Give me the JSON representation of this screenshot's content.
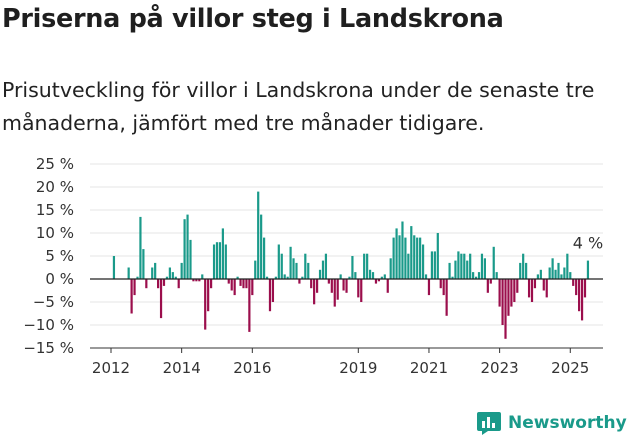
{
  "title": "Priserna på villor steg i Landskrona",
  "subtitle": "Prisutveckling för villor i Landskrona under de senaste tre månaderna, jämfört med tre månader tidigare.",
  "brand": {
    "name": "Newsworthy",
    "icon": "newsworthy-logo-icon",
    "color": "#1a9a8a"
  },
  "colors": {
    "positive": "#1a9a8a",
    "negative": "#9b0e4c",
    "zero_line": "#222222",
    "grid": "#e6e6e6"
  },
  "annotation": {
    "text": "4 %"
  },
  "chart_data": {
    "type": "bar",
    "title": "Priserna på villor steg i Landskrona",
    "xlabel": "",
    "ylabel": "",
    "ylim": [
      -15,
      25
    ],
    "yticks": [
      25,
      20,
      15,
      10,
      5,
      0,
      -5,
      -10,
      -15
    ],
    "ytick_labels": [
      "25 %",
      "20 %",
      "15 %",
      "10 %",
      "5 %",
      "0 %",
      "−5 %",
      "−10 %",
      "−15 %"
    ],
    "x_start": "2012-01",
    "x_end": "2025-06",
    "xticks": [
      {
        "date": "2012-01",
        "label": "2012"
      },
      {
        "date": "2014-01",
        "label": "2014"
      },
      {
        "date": "2016-01",
        "label": "2016"
      },
      {
        "date": "2019-01",
        "label": "2019"
      },
      {
        "date": "2021-01",
        "label": "2021"
      },
      {
        "date": "2023-01",
        "label": "2023"
      },
      {
        "date": "2025-01",
        "label": "2025"
      }
    ],
    "grid": true,
    "legend": "none",
    "points": [
      {
        "date": "2012-02",
        "value": 5
      },
      {
        "date": "2012-07",
        "value": 2.5
      },
      {
        "date": "2012-08",
        "value": -7.5
      },
      {
        "date": "2012-09",
        "value": -3.5
      },
      {
        "date": "2012-10",
        "value": 0.5
      },
      {
        "date": "2012-11",
        "value": 13.5
      },
      {
        "date": "2012-12",
        "value": 6.5
      },
      {
        "date": "2013-01",
        "value": -2
      },
      {
        "date": "2013-03",
        "value": 2.5
      },
      {
        "date": "2013-04",
        "value": 3.5
      },
      {
        "date": "2013-05",
        "value": -2
      },
      {
        "date": "2013-06",
        "value": -8.5
      },
      {
        "date": "2013-07",
        "value": -1.5
      },
      {
        "date": "2013-08",
        "value": 0.5
      },
      {
        "date": "2013-09",
        "value": 2.5
      },
      {
        "date": "2013-10",
        "value": 1.5
      },
      {
        "date": "2013-11",
        "value": 0.5
      },
      {
        "date": "2013-12",
        "value": -2
      },
      {
        "date": "2014-01",
        "value": 3.5
      },
      {
        "date": "2014-02",
        "value": 13
      },
      {
        "date": "2014-03",
        "value": 14
      },
      {
        "date": "2014-04",
        "value": 8.5
      },
      {
        "date": "2014-05",
        "value": -0.5
      },
      {
        "date": "2014-06",
        "value": -0.5
      },
      {
        "date": "2014-07",
        "value": -0.5
      },
      {
        "date": "2014-08",
        "value": 1
      },
      {
        "date": "2014-09",
        "value": -11
      },
      {
        "date": "2014-10",
        "value": -7
      },
      {
        "date": "2014-11",
        "value": -2
      },
      {
        "date": "2014-12",
        "value": 7.5
      },
      {
        "date": "2015-01",
        "value": 8
      },
      {
        "date": "2015-02",
        "value": 8
      },
      {
        "date": "2015-03",
        "value": 11
      },
      {
        "date": "2015-04",
        "value": 7.5
      },
      {
        "date": "2015-05",
        "value": -1
      },
      {
        "date": "2015-06",
        "value": -2.5
      },
      {
        "date": "2015-07",
        "value": -3.5
      },
      {
        "date": "2015-08",
        "value": 0.5
      },
      {
        "date": "2015-09",
        "value": -1.5
      },
      {
        "date": "2015-10",
        "value": -2
      },
      {
        "date": "2015-11",
        "value": -2
      },
      {
        "date": "2015-12",
        "value": -11.5
      },
      {
        "date": "2016-01",
        "value": -3.5
      },
      {
        "date": "2016-02",
        "value": 4
      },
      {
        "date": "2016-03",
        "value": 19
      },
      {
        "date": "2016-04",
        "value": 14
      },
      {
        "date": "2016-05",
        "value": 9
      },
      {
        "date": "2016-06",
        "value": 0.5
      },
      {
        "date": "2016-07",
        "value": -7
      },
      {
        "date": "2016-08",
        "value": -5
      },
      {
        "date": "2016-09",
        "value": 0.5
      },
      {
        "date": "2016-10",
        "value": 7.5
      },
      {
        "date": "2016-11",
        "value": 5.5
      },
      {
        "date": "2016-12",
        "value": 1
      },
      {
        "date": "2017-01",
        "value": 0.5
      },
      {
        "date": "2017-02",
        "value": 7
      },
      {
        "date": "2017-03",
        "value": 4.5
      },
      {
        "date": "2017-04",
        "value": 3.5
      },
      {
        "date": "2017-05",
        "value": -1
      },
      {
        "date": "2017-06",
        "value": 0.5
      },
      {
        "date": "2017-07",
        "value": 5.5
      },
      {
        "date": "2017-08",
        "value": 3.5
      },
      {
        "date": "2017-09",
        "value": -2
      },
      {
        "date": "2017-10",
        "value": -5.5
      },
      {
        "date": "2017-11",
        "value": -3
      },
      {
        "date": "2017-12",
        "value": 2
      },
      {
        "date": "2018-01",
        "value": 4
      },
      {
        "date": "2018-02",
        "value": 5.5
      },
      {
        "date": "2018-03",
        "value": -1
      },
      {
        "date": "2018-04",
        "value": -3
      },
      {
        "date": "2018-05",
        "value": -6
      },
      {
        "date": "2018-06",
        "value": -4.5
      },
      {
        "date": "2018-07",
        "value": 1
      },
      {
        "date": "2018-08",
        "value": -2.5
      },
      {
        "date": "2018-09",
        "value": -3
      },
      {
        "date": "2018-10",
        "value": 0.5
      },
      {
        "date": "2018-11",
        "value": 5
      },
      {
        "date": "2018-12",
        "value": 1.5
      },
      {
        "date": "2019-01",
        "value": -4
      },
      {
        "date": "2019-02",
        "value": -5
      },
      {
        "date": "2019-03",
        "value": 5.5
      },
      {
        "date": "2019-04",
        "value": 5.5
      },
      {
        "date": "2019-05",
        "value": 2
      },
      {
        "date": "2019-06",
        "value": 1.5
      },
      {
        "date": "2019-07",
        "value": -1
      },
      {
        "date": "2019-08",
        "value": -0.5
      },
      {
        "date": "2019-09",
        "value": 0.5
      },
      {
        "date": "2019-10",
        "value": 1
      },
      {
        "date": "2019-11",
        "value": -3
      },
      {
        "date": "2019-12",
        "value": 4.5
      },
      {
        "date": "2020-01",
        "value": 9
      },
      {
        "date": "2020-02",
        "value": 11
      },
      {
        "date": "2020-03",
        "value": 9.5
      },
      {
        "date": "2020-04",
        "value": 12.5
      },
      {
        "date": "2020-05",
        "value": 9
      },
      {
        "date": "2020-06",
        "value": 5.5
      },
      {
        "date": "2020-07",
        "value": 11.5
      },
      {
        "date": "2020-08",
        "value": 9.5
      },
      {
        "date": "2020-09",
        "value": 9
      },
      {
        "date": "2020-10",
        "value": 9
      },
      {
        "date": "2020-11",
        "value": 7.5
      },
      {
        "date": "2020-12",
        "value": 1
      },
      {
        "date": "2021-01",
        "value": -3.5
      },
      {
        "date": "2021-02",
        "value": 6
      },
      {
        "date": "2021-03",
        "value": 6
      },
      {
        "date": "2021-04",
        "value": 10
      },
      {
        "date": "2021-05",
        "value": -2
      },
      {
        "date": "2021-06",
        "value": -3.5
      },
      {
        "date": "2021-07",
        "value": -8
      },
      {
        "date": "2021-08",
        "value": 3.5
      },
      {
        "date": "2021-09",
        "value": 0.5
      },
      {
        "date": "2021-10",
        "value": 4
      },
      {
        "date": "2021-11",
        "value": 6
      },
      {
        "date": "2021-12",
        "value": 5.5
      },
      {
        "date": "2022-01",
        "value": 5.5
      },
      {
        "date": "2022-02",
        "value": 4
      },
      {
        "date": "2022-03",
        "value": 5.5
      },
      {
        "date": "2022-04",
        "value": 1.5
      },
      {
        "date": "2022-05",
        "value": 0.5
      },
      {
        "date": "2022-06",
        "value": 1.5
      },
      {
        "date": "2022-07",
        "value": 5.5
      },
      {
        "date": "2022-08",
        "value": 4.5
      },
      {
        "date": "2022-09",
        "value": -3
      },
      {
        "date": "2022-10",
        "value": -1
      },
      {
        "date": "2022-11",
        "value": 7
      },
      {
        "date": "2022-12",
        "value": 1.5
      },
      {
        "date": "2023-01",
        "value": -6
      },
      {
        "date": "2023-02",
        "value": -10
      },
      {
        "date": "2023-03",
        "value": -13
      },
      {
        "date": "2023-04",
        "value": -8
      },
      {
        "date": "2023-05",
        "value": -6
      },
      {
        "date": "2023-06",
        "value": -5
      },
      {
        "date": "2023-07",
        "value": -3
      },
      {
        "date": "2023-08",
        "value": 3.5
      },
      {
        "date": "2023-09",
        "value": 5.5
      },
      {
        "date": "2023-10",
        "value": 3.5
      },
      {
        "date": "2023-11",
        "value": -4
      },
      {
        "date": "2023-12",
        "value": -5
      },
      {
        "date": "2024-01",
        "value": -2
      },
      {
        "date": "2024-02",
        "value": 1
      },
      {
        "date": "2024-03",
        "value": 2
      },
      {
        "date": "2024-04",
        "value": -2.5
      },
      {
        "date": "2024-05",
        "value": -4
      },
      {
        "date": "2024-06",
        "value": 2.5
      },
      {
        "date": "2024-07",
        "value": 4.5
      },
      {
        "date": "2024-08",
        "value": 2
      },
      {
        "date": "2024-09",
        "value": 3.5
      },
      {
        "date": "2024-10",
        "value": 1
      },
      {
        "date": "2024-11",
        "value": 2.5
      },
      {
        "date": "2024-12",
        "value": 5.5
      },
      {
        "date": "2025-01",
        "value": 1.5
      },
      {
        "date": "2025-02",
        "value": -1.5
      },
      {
        "date": "2025-03",
        "value": -3.5
      },
      {
        "date": "2025-04",
        "value": -7
      },
      {
        "date": "2025-05",
        "value": -9
      },
      {
        "date": "2025-06",
        "value": -4
      },
      {
        "date": "2025-07",
        "value": 4
      }
    ]
  }
}
